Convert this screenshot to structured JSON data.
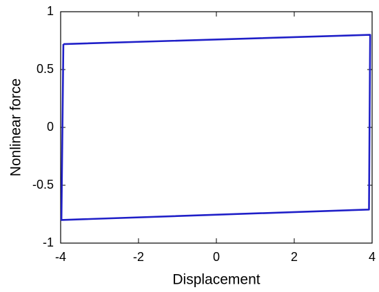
{
  "chart_data": {
    "type": "line",
    "x_label": "Displacement",
    "y_label": "Nonlinear force",
    "x": [
      -3.93,
      3.95,
      3.92,
      -3.98,
      -3.93
    ],
    "series": [
      {
        "color": "#1f1fc8",
        "values": [
          0.72,
          0.8,
          -0.71,
          -0.8,
          0.72
        ]
      }
    ],
    "xlim": [
      -4,
      4
    ],
    "xticks": [
      -4,
      -2,
      0,
      2,
      4
    ],
    "ylim": [
      -1,
      1
    ],
    "yticks": [
      -1,
      -0.5,
      0,
      0.5,
      1
    ],
    "grid": false
  }
}
